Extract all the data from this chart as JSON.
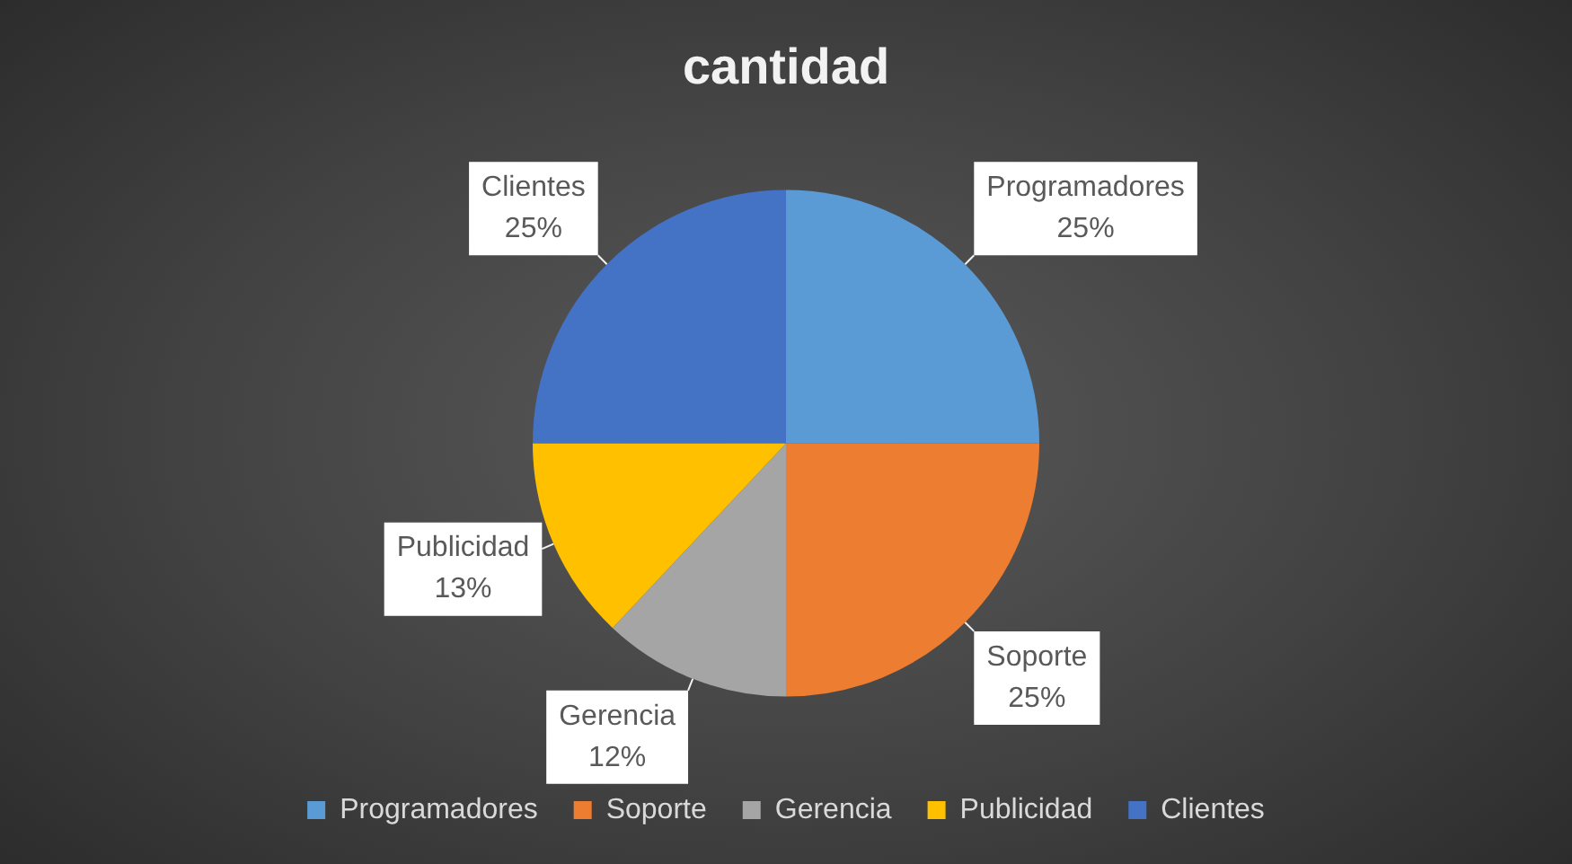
{
  "chart_data": {
    "type": "pie",
    "title": "cantidad",
    "categories": [
      "Programadores",
      "Soporte",
      "Gerencia",
      "Publicidad",
      "Clientes"
    ],
    "values": [
      25,
      25,
      12,
      13,
      25
    ],
    "colors": [
      "#5b9bd5",
      "#ed7d31",
      "#a5a5a5",
      "#ffc000",
      "#4472c4"
    ],
    "value_labels": [
      "25%",
      "25%",
      "12%",
      "13%",
      "25%"
    ],
    "legend": "bottom"
  }
}
